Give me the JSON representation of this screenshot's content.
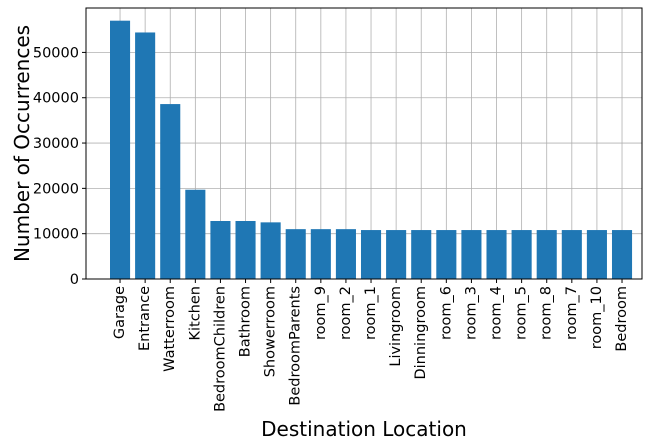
{
  "chart_data": {
    "type": "bar",
    "title": "",
    "xlabel": "Destination Location",
    "ylabel": "Number of Occurrences",
    "categories": [
      "Garage",
      "Entrance",
      "Watterroom",
      "Kitchen",
      "BedroomChildren",
      "Bathroom",
      "Showerroom",
      "BedroomParents",
      "room_9",
      "room_2",
      "room_1",
      "Livingroom",
      "Dinningroom",
      "room_6",
      "room_3",
      "room_4",
      "room_5",
      "room_8",
      "room_7",
      "room_10",
      "Bedroom"
    ],
    "values": [
      57000,
      54400,
      38600,
      19700,
      12800,
      12800,
      12500,
      11000,
      11000,
      11000,
      10800,
      10800,
      10800,
      10800,
      10800,
      10800,
      10800,
      10800,
      10800,
      10800,
      10800
    ],
    "ylim": [
      0,
      59800
    ],
    "yticks": [
      "0",
      "10000",
      "20000",
      "30000",
      "40000",
      "50000"
    ],
    "grid": true,
    "bar_color": "#1f77b4"
  }
}
